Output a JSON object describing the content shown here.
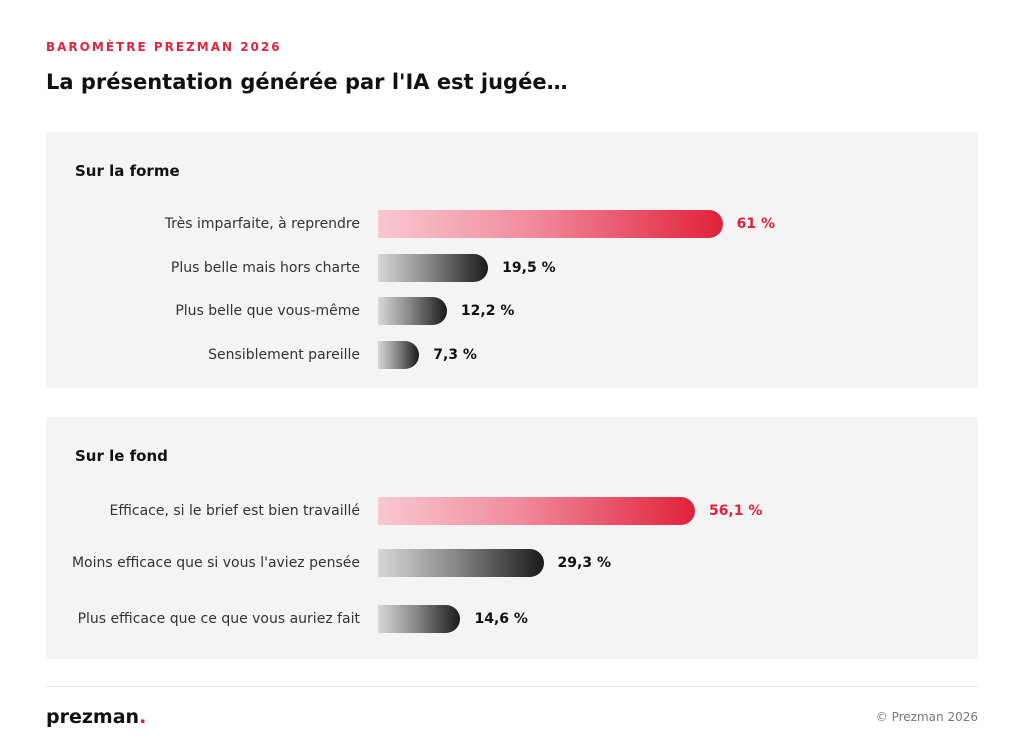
{
  "header": {
    "kicker": "BAROMÈTRE PREZMAN 2026",
    "title": "La présentation générée par l'IA est jugée…"
  },
  "chart_data": [
    {
      "type": "bar",
      "orientation": "horizontal",
      "title": "Sur la forme",
      "categories": [
        "Très imparfaite, à reprendre",
        "Plus belle mais hors charte",
        "Plus belle que vous-même",
        "Sensiblement pareille"
      ],
      "values": [
        61,
        19.5,
        12.2,
        7.3
      ],
      "value_labels": [
        "61 %",
        "19,5 %",
        "12,2 %",
        "7,3 %"
      ],
      "highlight_index": 0,
      "unit": "%",
      "xlim": [
        0,
        100
      ]
    },
    {
      "type": "bar",
      "orientation": "horizontal",
      "title": "Sur le fond",
      "categories": [
        "Efficace, si le brief est bien travaillé",
        "Moins efficace que si vous l'aviez pensée",
        "Plus efficace que ce que vous auriez fait"
      ],
      "values": [
        56.1,
        29.3,
        14.6
      ],
      "value_labels": [
        "56,1 %",
        "29,3 %",
        "14,6 %"
      ],
      "highlight_index": 0,
      "unit": "%",
      "xlim": [
        0,
        100
      ]
    }
  ],
  "footer": {
    "logo_text": "prezman",
    "logo_dot": ".",
    "copyright": "© Prezman 2026"
  },
  "colors": {
    "accent": "#e0213a",
    "panel_bg": "#f4f4f4",
    "dark_bar": "#1a1a1a"
  }
}
